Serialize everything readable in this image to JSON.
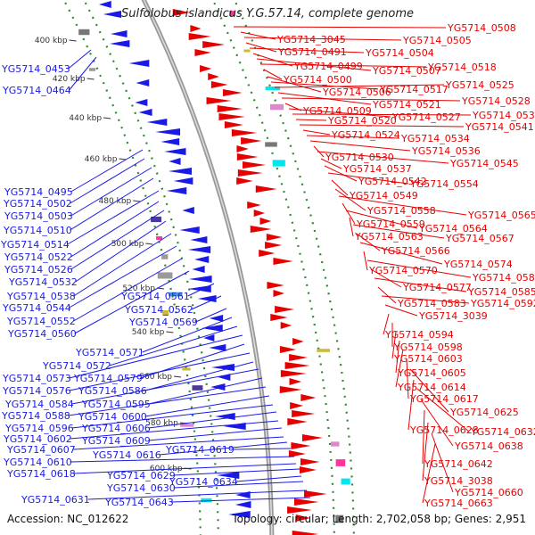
{
  "title": "Sulfolobus islandicus Y.G.57.14, complete genome",
  "accession": "Accession: NC_012622",
  "summary": "Topology: circular; Length: 2,702,058 bp; Genes: 2,951",
  "colors": {
    "forward": "#1a1ae6",
    "reverse": "#e60000",
    "backbone": "#999999",
    "tick": "#2e8b2e"
  },
  "ticks": [
    "400 kbp",
    "420 kbp",
    "440 kbp",
    "460 kbp",
    "480 kbp",
    "500 kbp",
    "520 kbp",
    "540 kbp",
    "560 kbp",
    "580 kbp",
    "600 kbp"
  ],
  "left_labels": [
    "YG5714_0453",
    "YG5714_0464",
    "YG5714_0495",
    "YG5714_0502",
    "YG5714_0503",
    "YG5714_0510",
    "YG5714_0514",
    "YG5714_0522",
    "YG5714_0526",
    "YG5714_0532",
    "YG5714_0538",
    "YG5714_0544",
    "YG5714_0552",
    "YG5714_0560",
    "YG5714_0561",
    "YG5714_0562",
    "YG5714_0569",
    "YG5714_0571",
    "YG5714_0572",
    "YG5714_0573",
    "YG5714_0579",
    "YG5714_0576",
    "YG5714_0586",
    "YG5714_0584",
    "YG5714_0595",
    "YG5714_0588",
    "YG5714_0600",
    "YG5714_0596",
    "YG5714_0606",
    "YG5714_0602",
    "YG5714_0609",
    "YG5714_0607",
    "YG5714_0616",
    "YG5714_0619",
    "YG5714_0610",
    "YG5714_0618",
    "YG5714_0629",
    "YG5714_0634",
    "YG5714_0630",
    "YG5714_0631",
    "YG5714_0643"
  ],
  "right_labels": [
    "YG5714_0508",
    "YG5714_3045",
    "YG5714_0505",
    "YG5714_0491",
    "YG5714_0504",
    "YG5714_0499",
    "YG5714_0507",
    "YG5714_0518",
    "YG5714_0500",
    "YG5714_0506",
    "YG5714_0517",
    "YG5714_0525",
    "YG5714_0521",
    "YG5714_0528",
    "YG5714_0509",
    "YG5714_0527",
    "YG5714_0535",
    "YG5714_0520",
    "YG5714_0541",
    "YG5714_0524",
    "YG5714_0534",
    "YG5714_0536",
    "YG5714_0530",
    "YG5714_0545",
    "YG5714_0537",
    "YG5714_0542",
    "YG5714_0554",
    "YG5714_0549",
    "YG5714_0558",
    "YG5714_0565",
    "YG5714_0559",
    "YG5714_0564",
    "YG5714_0563",
    "YG5714_0567",
    "YG5714_0566",
    "YG5714_0574",
    "YG5714_0570",
    "YG5714_0580",
    "YG5714_0577",
    "YG5714_0585",
    "YG5714_0583",
    "YG5714_0592",
    "YG5714_3039",
    "YG5714_0594",
    "YG5714_0598",
    "YG5714_0603",
    "YG5714_0605",
    "YG5714_0614",
    "YG5714_0617",
    "YG5714_0625",
    "YG5714_0628",
    "YG5714_0632",
    "YG5714_0638",
    "YG5714_0642",
    "YG5714_3038",
    "YG5714_0660",
    "YG5714_0663"
  ]
}
